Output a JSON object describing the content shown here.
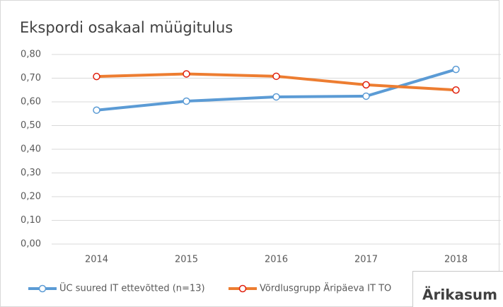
{
  "chart_data": {
    "type": "line",
    "title": "Ekspordi osakaal müügitulus",
    "categories": [
      "2014",
      "2015",
      "2016",
      "2017",
      "2018"
    ],
    "series": [
      {
        "name": "ÜC suured IT ettevõtted (n=13)",
        "color": "#5b9bd5",
        "marker_stroke": "#5b9bd5",
        "values": [
          0.565,
          0.603,
          0.621,
          0.624,
          0.737
        ]
      },
      {
        "name": "Võrdlusgrupp Äripäeva IT TO",
        "color": "#ed7d31",
        "marker_stroke": "#e0200f",
        "values": [
          0.707,
          0.718,
          0.708,
          0.672,
          0.65
        ]
      }
    ],
    "ylim": [
      0,
      0.8
    ],
    "yticks": [
      {
        "value": 0,
        "label": "0,00"
      },
      {
        "value": 0.1,
        "label": "0,10"
      },
      {
        "value": 0.2,
        "label": "0,20"
      },
      {
        "value": 0.3,
        "label": "0,30"
      },
      {
        "value": 0.4,
        "label": "0,40"
      },
      {
        "value": 0.5,
        "label": "0,50"
      },
      {
        "value": 0.6,
        "label": "0,60"
      },
      {
        "value": 0.7,
        "label": "0,70"
      },
      {
        "value": 0.8,
        "label": "0,80"
      }
    ],
    "grid": true,
    "legend": "bottom"
  },
  "overlay": {
    "title": "Ärikasum"
  }
}
